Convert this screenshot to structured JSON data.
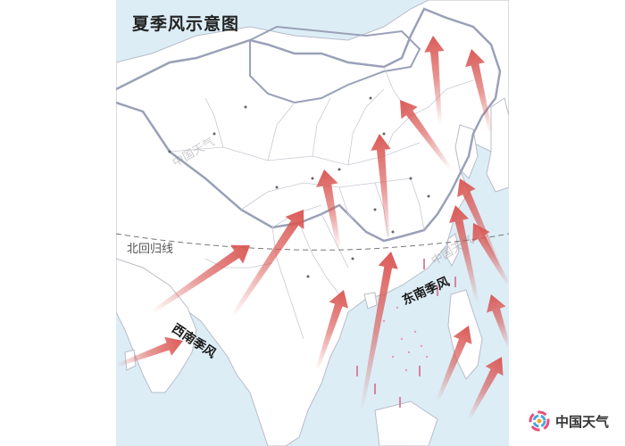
{
  "title": "夏季风示意图",
  "tropic_label": "北回归线",
  "labels": {
    "southwest_monsoon": "西南季风",
    "southeast_monsoon": "东南季风"
  },
  "watermark": "中国天气",
  "logo": {
    "text": "中国天气",
    "icon": "china-weather-logo-icon"
  },
  "colors": {
    "arrow": "#d9534f",
    "sea": "#dcedf6",
    "land": "#ffffff",
    "border": "#9aa0b8",
    "tropic_line": "#777777"
  },
  "arrows": {
    "southwest_monsoon_count": 6,
    "southeast_monsoon_count": 9
  }
}
